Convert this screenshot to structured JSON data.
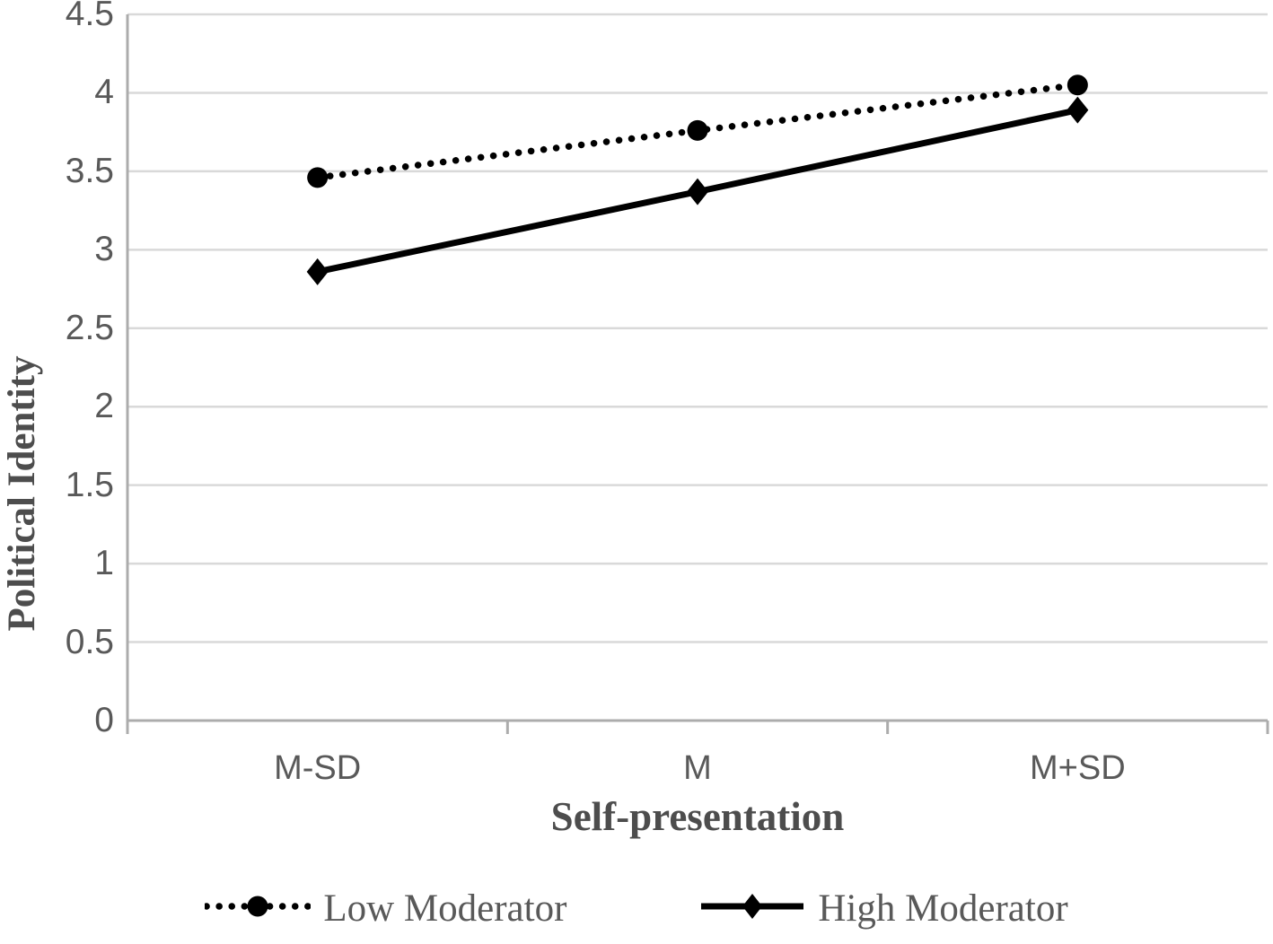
{
  "chart_data": {
    "type": "line",
    "categories": [
      "M-SD",
      "M",
      "M+SD"
    ],
    "series": [
      {
        "name": "Low Moderator",
        "values": [
          3.46,
          3.76,
          4.05
        ],
        "line_style": "dotted",
        "marker": "circle"
      },
      {
        "name": "High Moderator",
        "values": [
          2.86,
          3.37,
          3.89
        ],
        "line_style": "solid",
        "marker": "diamond"
      }
    ],
    "xlabel": "Self-presentation",
    "ylabel": "Political Identity",
    "ylim": [
      0,
      4.5
    ],
    "yticks": [
      0,
      0.5,
      1,
      1.5,
      2,
      2.5,
      3,
      3.5,
      4,
      4.5
    ],
    "grid": "horizontal",
    "legend_position": "bottom",
    "colors": {
      "series": "#000000",
      "gridline": "#d9d9d9",
      "axis_line": "#acacac",
      "tick_label": "#595959",
      "axis_title": "#4d4d4d",
      "legend_text": "#595959",
      "background": "#ffffff"
    }
  }
}
